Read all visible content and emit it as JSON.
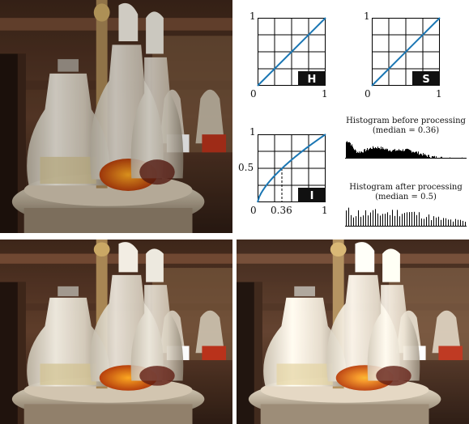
{
  "photos": [
    {
      "id": "original",
      "desc": "cruet set photograph (original)"
    },
    {
      "id": "processed-a",
      "desc": "cruet set photograph (processed)"
    },
    {
      "id": "processed-b",
      "desc": "cruet set photograph (processed, brighter)"
    }
  ],
  "transforms": [
    {
      "label": "H",
      "y_top": "1",
      "x_left": "0",
      "x_right": "1",
      "curve": "identity"
    },
    {
      "label": "S",
      "y_top": "1",
      "x_left": "0",
      "x_right": "1",
      "curve": "identity"
    },
    {
      "label": "I",
      "y_top": "1",
      "y_mid": "0.5",
      "x_left": "0",
      "x_mid": "0.36",
      "x_right": "1",
      "curve": "gamma"
    }
  ],
  "histograms": {
    "before": {
      "line1": "Histogram before processing",
      "line2": "(median = 0.36)"
    },
    "after": {
      "line1": "Histogram after processing",
      "line2": "(median = 0.5)"
    }
  },
  "colors": {
    "curve": "#1a76b3",
    "grid": "#000000",
    "label_bg": "#111111"
  }
}
